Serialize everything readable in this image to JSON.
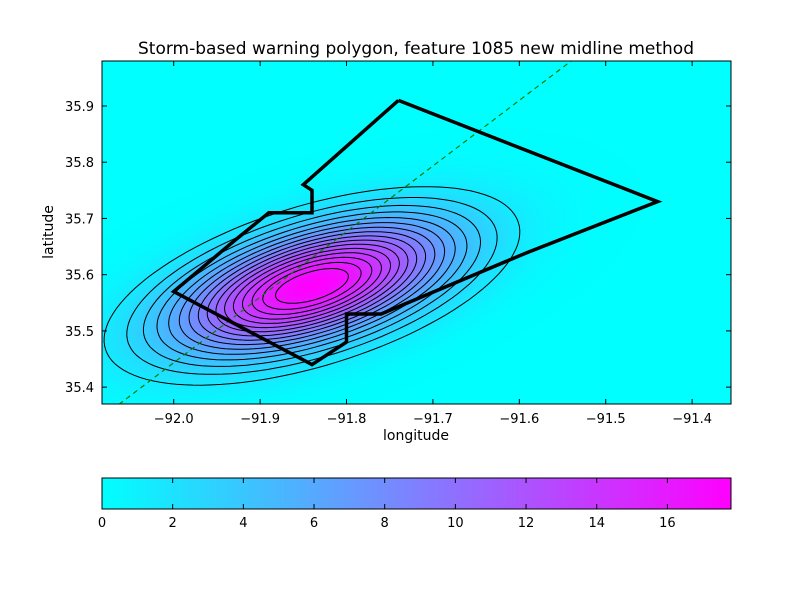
{
  "chart_data": {
    "type": "heatmap",
    "title": "Storm-based warning polygon, feature 1085 new midline method",
    "xlabel": "longitude",
    "ylabel": "latitude",
    "xlim": [
      -92.083,
      -91.355
    ],
    "ylim": [
      35.37,
      35.98
    ],
    "xticks": [
      -92.0,
      -91.9,
      -91.8,
      -91.7,
      -91.6,
      -91.5,
      -91.4
    ],
    "xtick_labels": [
      "−92.0",
      "−91.9",
      "−91.8",
      "−91.7",
      "−91.6",
      "−91.5",
      "−91.4"
    ],
    "yticks": [
      35.4,
      35.5,
      35.6,
      35.7,
      35.8,
      35.9
    ],
    "ytick_labels": [
      "35.4",
      "35.5",
      "35.6",
      "35.7",
      "35.8",
      "35.9"
    ],
    "colormap": {
      "name": "cool",
      "low": "#00ffff",
      "high": "#ff00ff"
    },
    "colorbar": {
      "range": [
        0,
        17.8
      ],
      "ticks": [
        0,
        2,
        4,
        6,
        8,
        10,
        12,
        14,
        16
      ],
      "tick_labels": [
        "0",
        "2",
        "4",
        "6",
        "8",
        "10",
        "12",
        "14",
        "16"
      ],
      "orientation": "horizontal"
    },
    "field": {
      "peak_value": 17.8,
      "center": {
        "lon": -91.84,
        "lat": 35.58
      },
      "axis_angle_deg": 30,
      "sigma_major": 0.12,
      "sigma_minor": 0.06,
      "contour_levels": [
        1.5,
        2.5,
        3.5,
        4.5,
        5.5,
        6.5,
        7.5,
        8.5,
        9.5,
        10.5,
        11.5,
        12.5,
        13.5,
        14.5,
        15.5,
        16.5
      ]
    },
    "polygon": [
      [
        -91.74,
        35.91
      ],
      [
        -91.44,
        35.73
      ],
      [
        -91.59,
        35.64
      ],
      [
        -91.76,
        35.53
      ],
      [
        -91.8,
        35.53
      ],
      [
        -91.8,
        35.48
      ],
      [
        -91.84,
        35.44
      ],
      [
        -92.0,
        35.57
      ],
      [
        -91.93,
        35.66
      ],
      [
        -91.89,
        35.71
      ],
      [
        -91.84,
        35.71
      ],
      [
        -91.84,
        35.75
      ],
      [
        -91.85,
        35.76
      ],
      [
        -91.74,
        35.91
      ]
    ],
    "midline": [
      [
        -92.08,
        35.35
      ],
      [
        -91.54,
        35.98
      ]
    ],
    "midline_color": "#008000",
    "polygon_color": "#000000"
  }
}
